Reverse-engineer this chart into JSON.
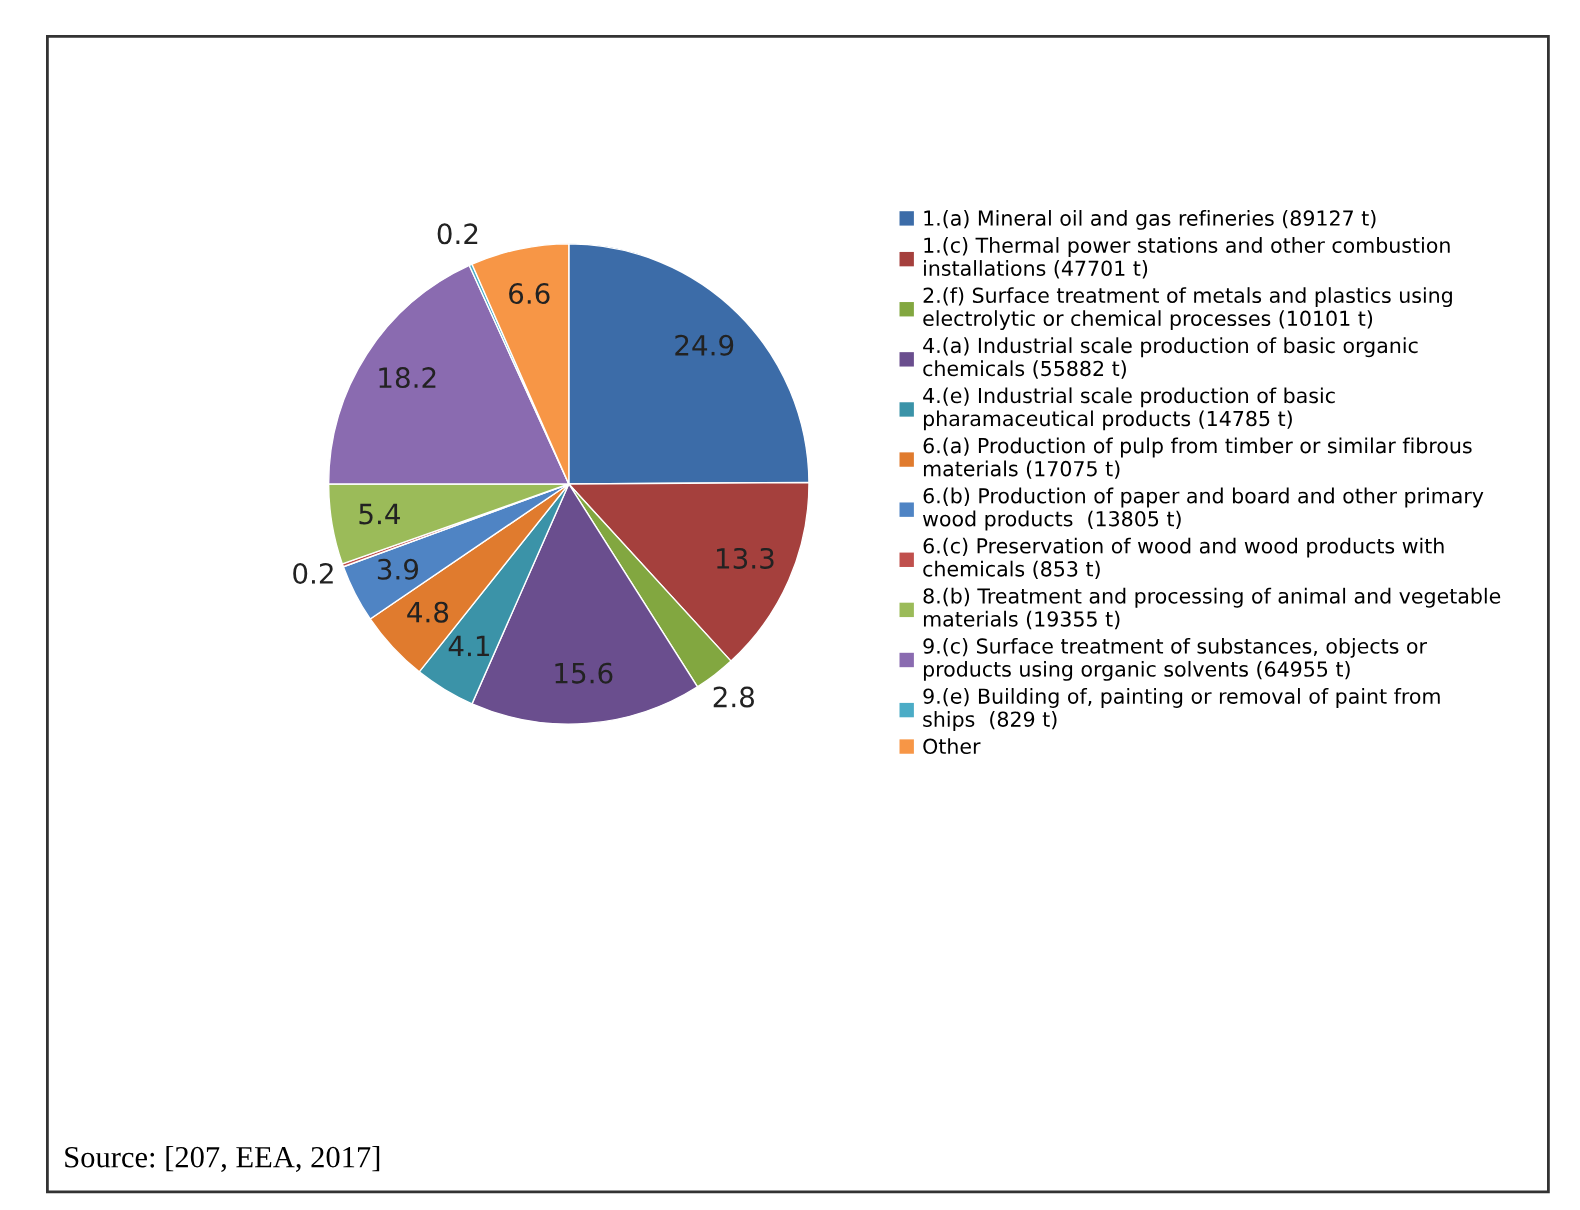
{
  "chart_data": {
    "type": "pie",
    "categories": [
      "1.(a) Mineral oil and gas refineries (89127 t)",
      "1.(c) Thermal power stations and other combustion\ninstallations (47701 t)",
      "2.(f) Surface treatment of metals and plastics using\nelectrolytic or chemical processes (10101 t)",
      "4.(a) Industrial scale production of basic organic\nchemicals (55882 t)",
      "4.(e) Industrial scale production of basic\npharamaceutical products (14785 t)",
      "6.(a) Production of pulp from timber or similar fibrous\nmaterials (17075 t)",
      "6.(b) Production of paper and board and other primary\nwood products  (13805 t)",
      "6.(c) Preservation of wood and wood products with\nchemicals (853 t)",
      "8.(b) Treatment and processing of animal and vegetable\nmaterials (19355 t)",
      "9.(c) Surface treatment of substances, objects or\nproducts using organic solvents (64955 t)",
      "9.(e) Building of, painting or removal of paint from\nships  (829 t)",
      "Other"
    ],
    "values": [
      24.9,
      13.3,
      2.8,
      15.6,
      4.1,
      4.8,
      3.9,
      0.2,
      5.4,
      18.2,
      0.2,
      6.6
    ],
    "colors": [
      "#3c6ca8",
      "#a5403d",
      "#82a740",
      "#6a4e8e",
      "#3b93a8",
      "#e07b2e",
      "#4f84c4",
      "#c0504d",
      "#9bbb59",
      "#8a6bb0",
      "#4bacc6",
      "#f79646"
    ],
    "data_labels": true,
    "legend": "right",
    "annotations": [
      "Source: [207, EEA, 2017]"
    ]
  }
}
